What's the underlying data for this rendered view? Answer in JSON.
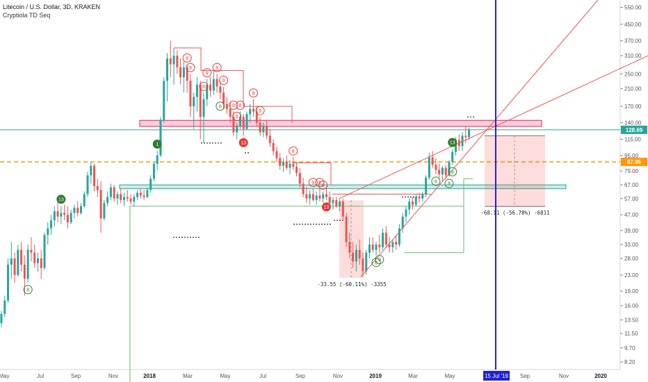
{
  "header": {
    "title": "Litecoin / U.S. Dollar, 3D, KRAKEN",
    "indicator": "Cryptiola TD Seq"
  },
  "chart_data": {
    "type": "candlestick",
    "symbol": "LTCUSD",
    "ylim": [
      7.5,
      600
    ],
    "yscale": "log",
    "y_ticks": [
      550.0,
      450.0,
      370.0,
      310.0,
      250.0,
      210.0,
      170.0,
      140.0,
      115.0,
      95.0,
      79.0,
      67.0,
      57.0,
      47.0,
      39.0,
      33.0,
      28.0,
      23.0,
      19.0,
      16.0,
      13.5,
      11.5,
      9.7,
      8.2
    ],
    "x_ticks": [
      "May",
      "Jul",
      "Sep",
      "Nov",
      "2018",
      "Mar",
      "May",
      "Jul",
      "Sep",
      "Nov",
      "2019",
      "Mar",
      "May",
      "15 Jul '19",
      "Sep",
      "Nov",
      "2020"
    ],
    "price_labels": [
      {
        "value": 128.69,
        "text": "128.69",
        "color": "#26a69a"
      },
      {
        "value": 87.95,
        "text": "87.95",
        "color": "#ff9800"
      }
    ],
    "candles": [
      {
        "t": 0,
        "o": 13.0,
        "h": 15.0,
        "l": 12.5,
        "c": 14.5
      },
      {
        "t": 1,
        "o": 14.5,
        "h": 18.0,
        "l": 14.0,
        "c": 17.0
      },
      {
        "t": 2,
        "o": 17.0,
        "h": 28.0,
        "l": 16.5,
        "c": 26.0
      },
      {
        "t": 3,
        "o": 26.0,
        "h": 34.0,
        "l": 22.0,
        "c": 28.0
      },
      {
        "t": 4,
        "o": 28.0,
        "h": 30.0,
        "l": 21.0,
        "c": 23.0
      },
      {
        "t": 5,
        "o": 23.0,
        "h": 33.0,
        "l": 22.5,
        "c": 31.0
      },
      {
        "t": 6,
        "o": 31.0,
        "h": 34.0,
        "l": 24.0,
        "c": 26.0
      },
      {
        "t": 7,
        "o": 26.0,
        "h": 29.0,
        "l": 18.0,
        "c": 22.0
      },
      {
        "t": 8,
        "o": 22.0,
        "h": 33.0,
        "l": 21.0,
        "c": 31.0
      },
      {
        "t": 9,
        "o": 31.0,
        "h": 36.0,
        "l": 27.0,
        "c": 30.0
      },
      {
        "t": 10,
        "o": 30.0,
        "h": 33.0,
        "l": 25.0,
        "c": 26.5
      },
      {
        "t": 11,
        "o": 26.5,
        "h": 30.0,
        "l": 24.0,
        "c": 28.0
      },
      {
        "t": 12,
        "o": 28.0,
        "h": 31.0,
        "l": 22.0,
        "c": 25.0
      },
      {
        "t": 13,
        "o": 25.0,
        "h": 38.0,
        "l": 24.5,
        "c": 37.0
      },
      {
        "t": 14,
        "o": 37.0,
        "h": 43.0,
        "l": 33.0,
        "c": 40.0
      },
      {
        "t": 15,
        "o": 40.0,
        "h": 47.0,
        "l": 37.0,
        "c": 44.0
      },
      {
        "t": 16,
        "o": 44.0,
        "h": 52.0,
        "l": 41.0,
        "c": 49.0
      },
      {
        "t": 17,
        "o": 49.0,
        "h": 56.0,
        "l": 43.0,
        "c": 46.0
      },
      {
        "t": 18,
        "o": 46.0,
        "h": 52.0,
        "l": 42.0,
        "c": 48.0
      },
      {
        "t": 19,
        "o": 48.0,
        "h": 53.0,
        "l": 44.0,
        "c": 47.0
      },
      {
        "t": 20,
        "o": 47.0,
        "h": 52.0,
        "l": 40.0,
        "c": 43.0
      },
      {
        "t": 21,
        "o": 43.0,
        "h": 50.0,
        "l": 42.0,
        "c": 48.0
      },
      {
        "t": 22,
        "o": 48.0,
        "h": 53.0,
        "l": 45.0,
        "c": 51.0
      },
      {
        "t": 23,
        "o": 51.0,
        "h": 55.0,
        "l": 46.0,
        "c": 48.0
      },
      {
        "t": 24,
        "o": 48.0,
        "h": 54.0,
        "l": 47.0,
        "c": 52.0
      },
      {
        "t": 25,
        "o": 52.0,
        "h": 62.0,
        "l": 51.0,
        "c": 60.0
      },
      {
        "t": 26,
        "o": 60.0,
        "h": 78.0,
        "l": 58.0,
        "c": 75.0
      },
      {
        "t": 27,
        "o": 75.0,
        "h": 88.0,
        "l": 68.0,
        "c": 84.0
      },
      {
        "t": 28,
        "o": 84.0,
        "h": 86.0,
        "l": 62.0,
        "c": 66.0
      },
      {
        "t": 29,
        "o": 66.0,
        "h": 72.0,
        "l": 58.0,
        "c": 63.0
      },
      {
        "t": 30,
        "o": 63.0,
        "h": 70.0,
        "l": 38.0,
        "c": 45.0
      },
      {
        "t": 31,
        "o": 45.0,
        "h": 56.0,
        "l": 44.0,
        "c": 54.0
      },
      {
        "t": 32,
        "o": 54.0,
        "h": 62.0,
        "l": 52.0,
        "c": 58.0
      },
      {
        "t": 33,
        "o": 58.0,
        "h": 68.0,
        "l": 56.0,
        "c": 65.0
      },
      {
        "t": 34,
        "o": 65.0,
        "h": 67.0,
        "l": 55.0,
        "c": 57.0
      },
      {
        "t": 35,
        "o": 57.0,
        "h": 62.0,
        "l": 53.0,
        "c": 60.0
      },
      {
        "t": 36,
        "o": 60.0,
        "h": 64.0,
        "l": 54.0,
        "c": 56.0
      },
      {
        "t": 37,
        "o": 56.0,
        "h": 61.0,
        "l": 52.0,
        "c": 58.0
      },
      {
        "t": 38,
        "o": 58.0,
        "h": 63.0,
        "l": 55.0,
        "c": 57.0
      },
      {
        "t": 39,
        "o": 57.0,
        "h": 60.0,
        "l": 53.0,
        "c": 55.0
      },
      {
        "t": 40,
        "o": 55.0,
        "h": 60.0,
        "l": 52.0,
        "c": 58.0
      },
      {
        "t": 41,
        "o": 58.0,
        "h": 63.0,
        "l": 56.0,
        "c": 61.0
      },
      {
        "t": 42,
        "o": 61.0,
        "h": 64.0,
        "l": 57.0,
        "c": 59.0
      },
      {
        "t": 43,
        "o": 59.0,
        "h": 63.0,
        "l": 56.0,
        "c": 58.0
      },
      {
        "t": 44,
        "o": 58.0,
        "h": 65.0,
        "l": 57.0,
        "c": 63.0
      },
      {
        "t": 45,
        "o": 63.0,
        "h": 75.0,
        "l": 61.0,
        "c": 72.0
      },
      {
        "t": 46,
        "o": 72.0,
        "h": 88.0,
        "l": 70.0,
        "c": 86.0
      },
      {
        "t": 47,
        "o": 86.0,
        "h": 100.0,
        "l": 80.0,
        "c": 95.0
      },
      {
        "t": 48,
        "o": 95.0,
        "h": 150.0,
        "l": 93.0,
        "c": 145.0
      },
      {
        "t": 49,
        "o": 145.0,
        "h": 240.0,
        "l": 140.0,
        "c": 230.0
      },
      {
        "t": 50,
        "o": 230.0,
        "h": 320.0,
        "l": 180.0,
        "c": 300.0
      },
      {
        "t": 51,
        "o": 300.0,
        "h": 370.0,
        "l": 240.0,
        "c": 280.0
      },
      {
        "t": 52,
        "o": 280.0,
        "h": 340.0,
        "l": 220.0,
        "c": 310.0
      },
      {
        "t": 53,
        "o": 310.0,
        "h": 330.0,
        "l": 250.0,
        "c": 270.0
      },
      {
        "t": 54,
        "o": 270.0,
        "h": 300.0,
        "l": 220.0,
        "c": 240.0
      },
      {
        "t": 55,
        "o": 240.0,
        "h": 290.0,
        "l": 200.0,
        "c": 270.0
      },
      {
        "t": 56,
        "o": 270.0,
        "h": 280.0,
        "l": 200.0,
        "c": 230.0
      },
      {
        "t": 57,
        "o": 230.0,
        "h": 250.0,
        "l": 150.0,
        "c": 170.0
      },
      {
        "t": 58,
        "o": 170.0,
        "h": 200.0,
        "l": 130.0,
        "c": 190.0
      },
      {
        "t": 59,
        "o": 190.0,
        "h": 240.0,
        "l": 160.0,
        "c": 220.0
      },
      {
        "t": 60,
        "o": 220.0,
        "h": 230.0,
        "l": 115.0,
        "c": 150.0
      },
      {
        "t": 61,
        "o": 150.0,
        "h": 200.0,
        "l": 110.0,
        "c": 185.0
      },
      {
        "t": 62,
        "o": 185.0,
        "h": 235.0,
        "l": 170.0,
        "c": 220.0
      },
      {
        "t": 63,
        "o": 220.0,
        "h": 240.0,
        "l": 190.0,
        "c": 205.0
      },
      {
        "t": 64,
        "o": 205.0,
        "h": 260.0,
        "l": 195.0,
        "c": 235.0
      },
      {
        "t": 65,
        "o": 235.0,
        "h": 250.0,
        "l": 200.0,
        "c": 215.0
      },
      {
        "t": 66,
        "o": 215.0,
        "h": 230.0,
        "l": 185.0,
        "c": 200.0
      },
      {
        "t": 67,
        "o": 200.0,
        "h": 215.0,
        "l": 165.0,
        "c": 175.0
      },
      {
        "t": 68,
        "o": 175.0,
        "h": 190.0,
        "l": 155.0,
        "c": 165.0
      },
      {
        "t": 69,
        "o": 165.0,
        "h": 180.0,
        "l": 140.0,
        "c": 150.0
      },
      {
        "t": 70,
        "o": 150.0,
        "h": 160.0,
        "l": 120.0,
        "c": 125.0
      },
      {
        "t": 71,
        "o": 125.0,
        "h": 140.0,
        "l": 115.0,
        "c": 135.0
      },
      {
        "t": 72,
        "o": 135.0,
        "h": 160.0,
        "l": 130.0,
        "c": 150.0
      },
      {
        "t": 73,
        "o": 150.0,
        "h": 155.0,
        "l": 120.0,
        "c": 130.0
      },
      {
        "t": 74,
        "o": 130.0,
        "h": 160.0,
        "l": 128.0,
        "c": 155.0
      },
      {
        "t": 75,
        "o": 155.0,
        "h": 175.0,
        "l": 140.0,
        "c": 165.0
      },
      {
        "t": 76,
        "o": 165.0,
        "h": 185.0,
        "l": 150.0,
        "c": 160.0
      },
      {
        "t": 77,
        "o": 160.0,
        "h": 170.0,
        "l": 135.0,
        "c": 140.0
      },
      {
        "t": 78,
        "o": 140.0,
        "h": 150.0,
        "l": 120.0,
        "c": 125.0
      },
      {
        "t": 79,
        "o": 125.0,
        "h": 140.0,
        "l": 118.0,
        "c": 135.0
      },
      {
        "t": 80,
        "o": 135.0,
        "h": 145.0,
        "l": 115.0,
        "c": 120.0
      },
      {
        "t": 81,
        "o": 120.0,
        "h": 130.0,
        "l": 105.0,
        "c": 110.0
      },
      {
        "t": 82,
        "o": 110.0,
        "h": 115.0,
        "l": 95.0,
        "c": 100.0
      },
      {
        "t": 83,
        "o": 100.0,
        "h": 105.0,
        "l": 88.0,
        "c": 92.0
      },
      {
        "t": 84,
        "o": 92.0,
        "h": 98.0,
        "l": 80.0,
        "c": 84.0
      },
      {
        "t": 85,
        "o": 84.0,
        "h": 92.0,
        "l": 78.0,
        "c": 88.0
      },
      {
        "t": 86,
        "o": 88.0,
        "h": 95.0,
        "l": 80.0,
        "c": 82.0
      },
      {
        "t": 87,
        "o": 82.0,
        "h": 90.0,
        "l": 76.0,
        "c": 86.0
      },
      {
        "t": 88,
        "o": 86.0,
        "h": 93.0,
        "l": 80.0,
        "c": 83.0
      },
      {
        "t": 89,
        "o": 83.0,
        "h": 88.0,
        "l": 74.0,
        "c": 77.0
      },
      {
        "t": 90,
        "o": 77.0,
        "h": 82.0,
        "l": 65.0,
        "c": 68.0
      },
      {
        "t": 91,
        "o": 68.0,
        "h": 73.0,
        "l": 58.0,
        "c": 60.0
      },
      {
        "t": 92,
        "o": 60.0,
        "h": 65.0,
        "l": 54.0,
        "c": 57.0
      },
      {
        "t": 93,
        "o": 57.0,
        "h": 63.0,
        "l": 53.0,
        "c": 60.0
      },
      {
        "t": 94,
        "o": 60.0,
        "h": 64.0,
        "l": 55.0,
        "c": 56.0
      },
      {
        "t": 95,
        "o": 56.0,
        "h": 62.0,
        "l": 53.0,
        "c": 59.0
      },
      {
        "t": 96,
        "o": 59.0,
        "h": 64.0,
        "l": 55.0,
        "c": 57.0
      },
      {
        "t": 97,
        "o": 57.0,
        "h": 62.0,
        "l": 54.0,
        "c": 60.0
      },
      {
        "t": 98,
        "o": 60.0,
        "h": 66.0,
        "l": 56.0,
        "c": 58.0
      },
      {
        "t": 99,
        "o": 58.0,
        "h": 62.0,
        "l": 52.0,
        "c": 54.0
      },
      {
        "t": 100,
        "o": 54.0,
        "h": 58.0,
        "l": 50.0,
        "c": 56.0
      },
      {
        "t": 101,
        "o": 56.0,
        "h": 58.0,
        "l": 51.0,
        "c": 52.0
      },
      {
        "t": 102,
        "o": 52.0,
        "h": 57.0,
        "l": 49.0,
        "c": 55.0
      },
      {
        "t": 103,
        "o": 55.0,
        "h": 57.0,
        "l": 44.0,
        "c": 46.0
      },
      {
        "t": 104,
        "o": 46.0,
        "h": 48.0,
        "l": 32.0,
        "c": 34.0
      },
      {
        "t": 105,
        "o": 34.0,
        "h": 38.0,
        "l": 28.0,
        "c": 30.0
      },
      {
        "t": 106,
        "o": 30.0,
        "h": 34.0,
        "l": 25.0,
        "c": 27.0
      },
      {
        "t": 107,
        "o": 27.0,
        "h": 33.0,
        "l": 24.0,
        "c": 31.0
      },
      {
        "t": 108,
        "o": 31.0,
        "h": 35.0,
        "l": 26.0,
        "c": 28.0
      },
      {
        "t": 109,
        "o": 28.0,
        "h": 30.0,
        "l": 22.5,
        "c": 24.0
      },
      {
        "t": 110,
        "o": 24.0,
        "h": 31.0,
        "l": 23.0,
        "c": 30.0
      },
      {
        "t": 111,
        "o": 30.0,
        "h": 36.0,
        "l": 28.0,
        "c": 33.0
      },
      {
        "t": 112,
        "o": 33.0,
        "h": 36.0,
        "l": 30.0,
        "c": 31.0
      },
      {
        "t": 113,
        "o": 31.0,
        "h": 34.0,
        "l": 29.0,
        "c": 33.0
      },
      {
        "t": 114,
        "o": 33.0,
        "h": 37.0,
        "l": 30.0,
        "c": 32.0
      },
      {
        "t": 115,
        "o": 32.0,
        "h": 40.0,
        "l": 31.0,
        "c": 38.0
      },
      {
        "t": 116,
        "o": 38.0,
        "h": 41.0,
        "l": 32.0,
        "c": 33.0
      },
      {
        "t": 117,
        "o": 33.0,
        "h": 36.0,
        "l": 30.0,
        "c": 32.0
      },
      {
        "t": 118,
        "o": 32.0,
        "h": 35.0,
        "l": 30.0,
        "c": 34.0
      },
      {
        "t": 119,
        "o": 34.0,
        "h": 37.0,
        "l": 31.0,
        "c": 33.0
      },
      {
        "t": 120,
        "o": 33.0,
        "h": 42.0,
        "l": 32.0,
        "c": 40.0
      },
      {
        "t": 121,
        "o": 40.0,
        "h": 48.0,
        "l": 38.0,
        "c": 46.0
      },
      {
        "t": 122,
        "o": 46.0,
        "h": 52.0,
        "l": 43.0,
        "c": 50.0
      },
      {
        "t": 123,
        "o": 50.0,
        "h": 57.0,
        "l": 47.0,
        "c": 55.0
      },
      {
        "t": 124,
        "o": 55.0,
        "h": 58.0,
        "l": 50.0,
        "c": 53.0
      },
      {
        "t": 125,
        "o": 53.0,
        "h": 60.0,
        "l": 52.0,
        "c": 58.0
      },
      {
        "t": 126,
        "o": 58.0,
        "h": 61.0,
        "l": 54.0,
        "c": 57.0
      },
      {
        "t": 127,
        "o": 57.0,
        "h": 62.0,
        "l": 55.0,
        "c": 60.0
      },
      {
        "t": 128,
        "o": 60.0,
        "h": 75.0,
        "l": 58.0,
        "c": 73.0
      },
      {
        "t": 129,
        "o": 73.0,
        "h": 98.0,
        "l": 71.0,
        "c": 93.0
      },
      {
        "t": 130,
        "o": 93.0,
        "h": 100.0,
        "l": 82.0,
        "c": 85.0
      },
      {
        "t": 131,
        "o": 85.0,
        "h": 92.0,
        "l": 76.0,
        "c": 80.0
      },
      {
        "t": 132,
        "o": 80.0,
        "h": 86.0,
        "l": 73.0,
        "c": 76.0
      },
      {
        "t": 133,
        "o": 76.0,
        "h": 84.0,
        "l": 70.0,
        "c": 82.0
      },
      {
        "t": 134,
        "o": 82.0,
        "h": 85.0,
        "l": 72.0,
        "c": 75.0
      },
      {
        "t": 135,
        "o": 75.0,
        "h": 90.0,
        "l": 74.0,
        "c": 88.0
      },
      {
        "t": 136,
        "o": 88.0,
        "h": 102.0,
        "l": 85.0,
        "c": 99.0
      },
      {
        "t": 137,
        "o": 99.0,
        "h": 118.0,
        "l": 95.0,
        "c": 114.0
      },
      {
        "t": 138,
        "o": 114.0,
        "h": 122.0,
        "l": 100.0,
        "c": 106.0
      },
      {
        "t": 139,
        "o": 106.0,
        "h": 125.0,
        "l": 100.0,
        "c": 120.0
      },
      {
        "t": 140,
        "o": 120.0,
        "h": 135.0,
        "l": 110.0,
        "c": 118.0
      },
      {
        "t": 141,
        "o": 118.0,
        "h": 132.0,
        "l": 114.0,
        "c": 128.69
      }
    ],
    "horizontal_lines": [
      {
        "value": 128.69,
        "style": "solid",
        "color": "#26a69a"
      },
      {
        "value": 87.95,
        "style": "dashed",
        "color": "#ff9800"
      }
    ],
    "zones": [
      {
        "type": "resistance",
        "from": 134.0,
        "to": 144.0,
        "color": "#e91e63"
      },
      {
        "type": "support",
        "from": 64.0,
        "to": 67.0,
        "color": "#26a69a"
      }
    ],
    "measurements": [
      {
        "text": "-33.55 (-60.11%) -3355",
        "from_price": 55.8,
        "to_price": 22.25
      },
      {
        "text": "-68.11 (-56.78%) -6811",
        "from_price": 120.0,
        "to_price": 51.89
      }
    ],
    "td_seq": {
      "green": [
        {
          "t": 8,
          "n": "8"
        },
        {
          "t": 18,
          "n": "13"
        },
        {
          "t": 47,
          "n": "1"
        },
        {
          "t": 66,
          "n": "6"
        },
        {
          "t": 113,
          "n": "8"
        },
        {
          "t": 114,
          "n": "9"
        },
        {
          "t": 131,
          "n": "6"
        },
        {
          "t": 135,
          "n": "8"
        },
        {
          "t": 136,
          "n": "13"
        },
        {
          "t": 136,
          "n": "9"
        }
      ],
      "red": [
        {
          "t": 56,
          "n": "8"
        },
        {
          "t": 57,
          "n": "9"
        },
        {
          "t": 61,
          "n": "8"
        },
        {
          "t": 62,
          "n": "9"
        },
        {
          "t": 65,
          "n": "8"
        },
        {
          "t": 67,
          "n": "9"
        },
        {
          "t": 70,
          "n": "8"
        },
        {
          "t": 71,
          "n": "9"
        },
        {
          "t": 72,
          "n": "8"
        },
        {
          "t": 73,
          "n": "13"
        },
        {
          "t": 76,
          "n": "8"
        },
        {
          "t": 78,
          "n": "9"
        },
        {
          "t": 88,
          "n": "8"
        },
        {
          "t": 94,
          "n": "9"
        },
        {
          "t": 96,
          "n": "8"
        },
        {
          "t": 97,
          "n": "9"
        },
        {
          "t": 98,
          "n": "13"
        }
      ]
    },
    "vertical_marker": {
      "label": "15 Jul '19"
    }
  }
}
